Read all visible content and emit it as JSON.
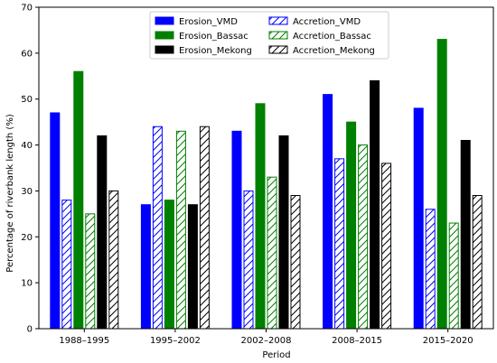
{
  "chart_data": {
    "type": "bar",
    "title": "",
    "xlabel": "Period",
    "ylabel": "Percentage of riverbank length (%)",
    "ylim": [
      0,
      70
    ],
    "yticks": [
      0,
      10,
      20,
      30,
      40,
      50,
      60,
      70
    ],
    "grid": false,
    "legend_position": "top-center",
    "categories": [
      "1988–1995",
      "1995–2002",
      "2002–2008",
      "2008–2015",
      "2015–2020"
    ],
    "series": [
      {
        "name": "Erosion_VMD",
        "color": "#0000ff",
        "style": "solid",
        "values": [
          47,
          27,
          43,
          51,
          48
        ]
      },
      {
        "name": "Accretion_VMD",
        "color": "#0000ff",
        "style": "hatched",
        "values": [
          28,
          44,
          30,
          37,
          26
        ]
      },
      {
        "name": "Erosion_Bassac",
        "color": "#008000",
        "style": "solid",
        "values": [
          56,
          28,
          49,
          45,
          63
        ]
      },
      {
        "name": "Accretion_Bassac",
        "color": "#008000",
        "style": "hatched",
        "values": [
          25,
          43,
          33,
          40,
          23
        ]
      },
      {
        "name": "Erosion_Mekong",
        "color": "#000000",
        "style": "solid",
        "values": [
          42,
          27,
          42,
          54,
          41
        ]
      },
      {
        "name": "Accretion_Mekong",
        "color": "#000000",
        "style": "hatched",
        "values": [
          30,
          44,
          29,
          36,
          29
        ]
      }
    ]
  }
}
